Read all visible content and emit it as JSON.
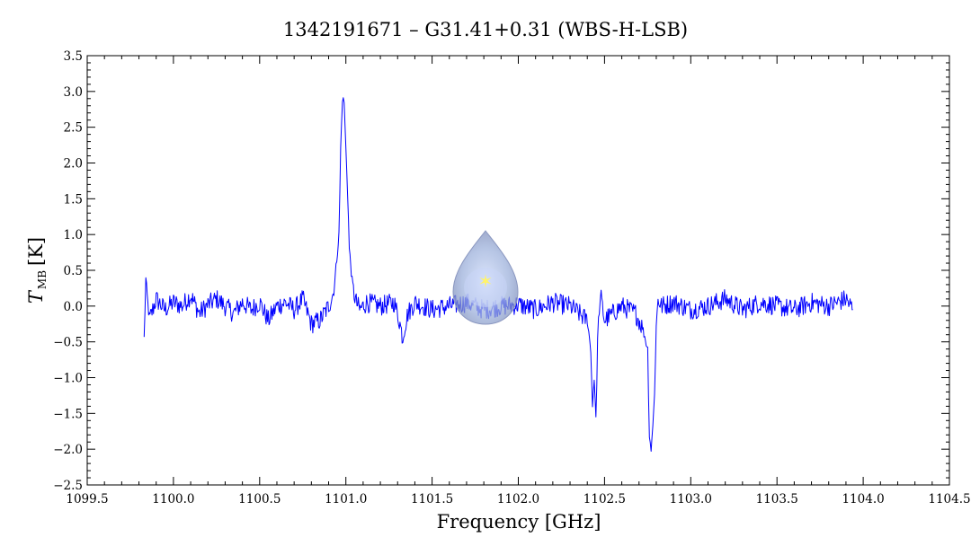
{
  "chart_data": {
    "type": "line",
    "title": "1342191671 – G31.41+0.31 (WBS-H-LSB)",
    "xlabel": "Frequency [GHz]",
    "ylabel_main": "T",
    "ylabel_sub": "MB",
    "ylabel_unit": "[K]",
    "xlim": [
      1099.5,
      1104.5
    ],
    "ylim": [
      -2.5,
      3.5
    ],
    "x_ticks": [
      "1099.5",
      "1100.0",
      "1100.5",
      "1101.0",
      "1101.5",
      "1102.0",
      "1102.5",
      "1103.0",
      "1103.5",
      "1104.0",
      "1104.5"
    ],
    "y_ticks": [
      "−2.5",
      "−2.0",
      "−1.5",
      "−1.0",
      "−0.5",
      "0.0",
      "0.5",
      "1.0",
      "1.5",
      "2.0",
      "2.5",
      "3.0",
      "3.5"
    ],
    "grid": false,
    "legend": "none",
    "series_color": "#0000ff",
    "series": [
      {
        "x": [
          1099.83,
          1099.84,
          1099.86,
          1099.9,
          1099.95,
          1100.0,
          1100.05,
          1100.1,
          1100.15,
          1100.2,
          1100.25,
          1100.3,
          1100.35,
          1100.4,
          1100.45,
          1100.5,
          1100.55,
          1100.6,
          1100.65,
          1100.7,
          1100.75,
          1100.8,
          1100.85,
          1100.9,
          1100.93,
          1100.96,
          1100.97,
          1100.98,
          1100.99,
          1101.0,
          1101.01,
          1101.02,
          1101.04,
          1101.06,
          1101.08,
          1101.12,
          1101.2,
          1101.28,
          1101.31,
          1101.33,
          1101.34,
          1101.36,
          1101.4,
          1101.5,
          1101.6,
          1101.7,
          1101.8,
          1101.9,
          1102.0,
          1102.1,
          1102.2,
          1102.3,
          1102.4,
          1102.42,
          1102.43,
          1102.44,
          1102.45,
          1102.46,
          1102.47,
          1102.48,
          1102.5,
          1102.6,
          1102.68,
          1102.72,
          1102.75,
          1102.76,
          1102.77,
          1102.78,
          1102.79,
          1102.8,
          1102.81,
          1102.83,
          1102.9,
          1103.0,
          1103.1,
          1103.2,
          1103.3,
          1103.4,
          1103.5,
          1103.6,
          1103.7,
          1103.8,
          1103.9,
          1103.94
        ],
        "y": [
          -0.45,
          0.38,
          -0.2,
          0.1,
          -0.05,
          0.05,
          0.0,
          0.15,
          -0.1,
          0.02,
          0.1,
          0.0,
          -0.1,
          0.05,
          -0.05,
          0.05,
          -0.2,
          0.0,
          0.05,
          -0.05,
          0.1,
          -0.25,
          -0.2,
          0.0,
          0.2,
          1.0,
          2.2,
          2.9,
          2.85,
          2.2,
          1.6,
          0.8,
          0.25,
          0.05,
          -0.05,
          0.05,
          0.0,
          0.05,
          -0.2,
          -0.45,
          -0.3,
          -0.1,
          0.05,
          -0.05,
          0.0,
          0.05,
          -0.05,
          0.0,
          0.02,
          -0.05,
          0.05,
          0.0,
          -0.2,
          -0.6,
          -1.4,
          -1.0,
          -1.6,
          -0.5,
          0.0,
          0.1,
          -0.2,
          0.0,
          -0.1,
          -0.3,
          -0.6,
          -1.8,
          -2.0,
          -1.7,
          -1.2,
          -0.3,
          0.1,
          0.0,
          0.05,
          -0.05,
          0.0,
          0.1,
          -0.05,
          0.05,
          0.0,
          -0.05,
          0.05,
          0.0,
          0.1,
          -0.05
        ]
      }
    ]
  }
}
